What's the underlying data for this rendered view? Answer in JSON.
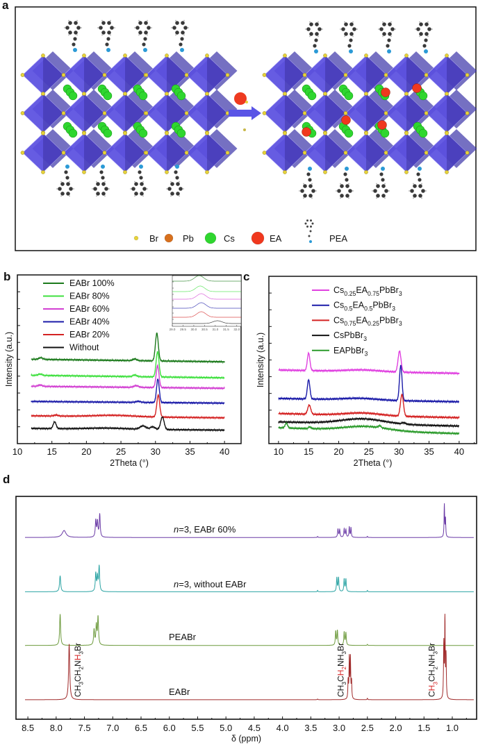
{
  "panel_a": {
    "label": "a",
    "legend": [
      {
        "symbol": "Br",
        "label": "Br",
        "color": "#e6d23a"
      },
      {
        "symbol": "Pb",
        "label": "Pb",
        "color": "#d7701e"
      },
      {
        "symbol": "Cs",
        "label": "Cs",
        "color": "#2fd62f"
      },
      {
        "symbol": "EA",
        "label": "EA",
        "color": "#f0381e"
      },
      {
        "symbol": "PEA",
        "label": "PEA",
        "color": "#444444"
      }
    ],
    "colors": {
      "octahedron": "#5a4fe0",
      "arrow": "#5a55e6",
      "carbon": "#3a3a3a",
      "nitrogen": "#2b9ad6"
    }
  },
  "chart_data": [
    {
      "panel_label": "b",
      "type": "line",
      "xlabel": "2Theta (°)",
      "ylabel": "Intensity (a.u.)",
      "xlim": [
        10,
        42.4
      ],
      "ylim": [
        0,
        10
      ],
      "xticks": [
        "10",
        "15",
        "20",
        "25",
        "30",
        "35",
        "40"
      ],
      "grid": false,
      "legend_position": "top-left",
      "series": [
        {
          "name": "EABr 100%",
          "color": "#1c7a1c",
          "range": [
            12,
            40
          ],
          "offset": 5.0,
          "slope": -0.15,
          "peaks": [
            [
              13.4,
              0.1,
              0.4
            ],
            [
              27.0,
              0.1,
              0.4
            ],
            [
              30.2,
              1.65,
              0.3
            ]
          ]
        },
        {
          "name": "EABr 80%",
          "color": "#3fe03f",
          "range": [
            12,
            40
          ],
          "offset": 4.05,
          "slope": -0.15,
          "peaks": [
            [
              13.3,
              0.08,
              0.4
            ],
            [
              27.0,
              0.1,
              0.4
            ],
            [
              30.3,
              1.5,
              0.3
            ]
          ]
        },
        {
          "name": "EABr 60%",
          "color": "#d23fd2",
          "range": [
            12,
            40
          ],
          "offset": 3.4,
          "slope": -0.12,
          "peaks": [
            [
              13.3,
              0.08,
              0.4
            ],
            [
              27.2,
              0.1,
              0.5
            ],
            [
              30.3,
              1.3,
              0.3
            ]
          ]
        },
        {
          "name": "EABr 40%",
          "color": "#1a1aa8",
          "range": [
            12,
            40
          ],
          "offset": 2.5,
          "slope": -0.1,
          "peaks": [
            [
              27.5,
              0.06,
              0.5
            ],
            [
              30.35,
              1.4,
              0.28
            ]
          ]
        },
        {
          "name": "EABr 20%",
          "color": "#d42222",
          "range": [
            12,
            40
          ],
          "offset": 1.65,
          "slope": -0.12,
          "peaks": [
            [
              15.6,
              0.06,
              0.4
            ],
            [
              24.0,
              0.08,
              4.0
            ],
            [
              30.4,
              1.3,
              0.3
            ]
          ]
        },
        {
          "name": "Without",
          "color": "#111111",
          "range": [
            12,
            40
          ],
          "offset": 0.9,
          "slope": -0.1,
          "peaks": [
            [
              15.4,
              0.4,
              0.3
            ],
            [
              23.0,
              0.06,
              4.0
            ],
            [
              28.2,
              0.2,
              0.6
            ],
            [
              29.6,
              0.15,
              0.5
            ],
            [
              31.0,
              0.75,
              0.35
            ]
          ]
        }
      ],
      "inset": {
        "xlim": [
          29.0,
          32.2
        ],
        "xticks": [
          "29.0",
          "29.5",
          "30.0",
          "30.5",
          "31.0",
          "31.5",
          "32.0"
        ],
        "peaks": [
          30.25,
          30.3,
          30.35,
          30.35,
          30.35,
          31.1
        ]
      }
    },
    {
      "panel_label": "c",
      "type": "line",
      "xlabel": "2Theta (°)",
      "ylabel": "Intensity (a.u.)",
      "xlim": [
        8.4,
        42.9
      ],
      "ylim": [
        0,
        10
      ],
      "xticks": [
        "10",
        "15",
        "20",
        "25",
        "30",
        "35",
        "40"
      ],
      "grid": false,
      "legend_position": "top-center",
      "series": [
        {
          "name": "Cs0.25EA0.75PbBr3",
          "name_parts": [
            [
              "Cs",
              ""
            ],
            [
              "0.25",
              "sub"
            ],
            [
              "EA",
              ""
            ],
            [
              "0.75",
              "sub"
            ],
            [
              "PbBr",
              ""
            ],
            [
              "3",
              "sub"
            ]
          ],
          "color": "#e040e0",
          "range": [
            10,
            40
          ],
          "offset": 4.4,
          "slope": -0.2,
          "peaks": [
            [
              15.0,
              1.05,
              0.3
            ],
            [
              24.0,
              0.1,
              4.0
            ],
            [
              30.1,
              1.25,
              0.35
            ]
          ]
        },
        {
          "name": "Cs0.5EA0.5PbBr3",
          "name_parts": [
            [
              "Cs",
              ""
            ],
            [
              "0.5",
              "sub"
            ],
            [
              "EA",
              ""
            ],
            [
              "0.5",
              "sub"
            ],
            [
              "PbBr",
              ""
            ],
            [
              "3",
              "sub"
            ]
          ],
          "color": "#1a1aa8",
          "range": [
            10,
            40
          ],
          "offset": 2.7,
          "slope": -0.2,
          "peaks": [
            [
              15.0,
              1.15,
              0.3
            ],
            [
              23.5,
              0.1,
              4.0
            ],
            [
              30.3,
              2.1,
              0.3
            ]
          ]
        },
        {
          "name": "Cs0.75EA0.25PbBr3",
          "name_parts": [
            [
              "Cs",
              ""
            ],
            [
              "0.75",
              "sub"
            ],
            [
              "EA",
              ""
            ],
            [
              "0.25",
              "sub"
            ],
            [
              "PbBr",
              ""
            ],
            [
              "3",
              "sub"
            ]
          ],
          "color": "#d42222",
          "range": [
            10,
            40
          ],
          "offset": 1.8,
          "slope": -0.25,
          "peaks": [
            [
              15.1,
              0.55,
              0.35
            ],
            [
              24.0,
              0.15,
              4.0
            ],
            [
              30.5,
              1.3,
              0.35
            ]
          ]
        },
        {
          "name": "CsPbBr3",
          "name_parts": [
            [
              "CsPbBr",
              ""
            ],
            [
              "3",
              "sub"
            ]
          ],
          "color": "#111111",
          "range": [
            10,
            40
          ],
          "offset": 1.3,
          "slope": -0.25,
          "peaks": [
            [
              24.0,
              0.3,
              5.0
            ],
            [
              30.8,
              0.08,
              0.4
            ]
          ]
        },
        {
          "name": "EAPbBr3",
          "name_parts": [
            [
              "EAPbBr",
              ""
            ],
            [
              "3",
              "sub"
            ]
          ],
          "color": "#2a9a2a",
          "range": [
            10,
            40
          ],
          "offset": 0.95,
          "slope": -0.35,
          "peaks": [
            [
              11.3,
              0.28,
              0.3
            ],
            [
              15.2,
              0.1,
              0.3
            ],
            [
              24.5,
              0.25,
              5.0
            ],
            [
              26.8,
              0.12,
              0.3
            ]
          ]
        }
      ]
    },
    {
      "panel_label": "d",
      "type": "line",
      "xlabel": "δ (ppm)",
      "xlim": [
        8.71,
        0.57
      ],
      "ylim": [
        0,
        320
      ],
      "xticks": [
        "8.5",
        "8.0",
        "7.5",
        "7.0",
        "6.5",
        "6.0",
        "5.5",
        "5.0",
        "4.5",
        "4.0",
        "3.5",
        "3.0",
        "2.5",
        "2.0",
        "1.5",
        "1.0"
      ],
      "grid": false,
      "series": [
        {
          "name": "n=3, EABr 60%",
          "name_parts": [
            [
              "n",
              "italic"
            ],
            [
              "=3, EABr 60%",
              ""
            ]
          ],
          "color": "#6a3aa6",
          "offset": 261,
          "peaks": [
            [
              7.86,
              10,
              0.04
            ],
            [
              7.3,
              24,
              0.01
            ],
            [
              7.27,
              22,
              0.01
            ],
            [
              7.23,
              33,
              0.01
            ],
            [
              3.38,
              1.5,
              0.006
            ],
            [
              3.02,
              12,
              0.008
            ],
            [
              2.99,
              11,
              0.008
            ],
            [
              2.91,
              12,
              0.008
            ],
            [
              2.88,
              11,
              0.008
            ],
            [
              2.82,
              15,
              0.007
            ],
            [
              2.79,
              14,
              0.007
            ],
            [
              2.5,
              1.5,
              0.006
            ],
            [
              1.14,
              47,
              0.006
            ],
            [
              1.12,
              26,
              0.006
            ]
          ]
        },
        {
          "name": "n=3, without EABr",
          "name_parts": [
            [
              "n",
              "italic"
            ],
            [
              "=3, without EABr",
              ""
            ]
          ],
          "color": "#2aa3a3",
          "offset": 183,
          "peaks": [
            [
              7.93,
              23,
              0.012
            ],
            [
              7.3,
              26,
              0.01
            ],
            [
              7.27,
              20,
              0.01
            ],
            [
              7.24,
              36,
              0.01
            ],
            [
              3.38,
              2,
              0.006
            ],
            [
              3.04,
              20,
              0.008
            ],
            [
              3.01,
              20,
              0.008
            ],
            [
              2.91,
              18,
              0.008
            ],
            [
              2.88,
              18,
              0.008
            ],
            [
              2.5,
              2,
              0.006
            ]
          ]
        },
        {
          "name": "PEABr",
          "name_parts": [
            [
              "PEABr",
              ""
            ]
          ],
          "color": "#6c9a3c",
          "offset": 106,
          "peaks": [
            [
              7.93,
              45,
              0.01
            ],
            [
              7.33,
              22,
              0.01
            ],
            [
              7.29,
              28,
              0.01
            ],
            [
              7.26,
              40,
              0.01
            ],
            [
              3.06,
              20,
              0.008
            ],
            [
              3.03,
              21,
              0.008
            ],
            [
              2.91,
              19,
              0.008
            ],
            [
              2.88,
              18,
              0.008
            ],
            [
              2.5,
              1.5,
              0.006
            ]
          ]
        },
        {
          "name": "EABr",
          "name_parts": [
            [
              "EABr",
              ""
            ]
          ],
          "color": "#a02a2a",
          "offset": 28,
          "peaks": [
            [
              7.77,
              80,
              0.012
            ],
            [
              3.38,
              1,
              0.006
            ],
            [
              2.84,
              26,
              0.006
            ],
            [
              2.82,
              58,
              0.006
            ],
            [
              2.8,
              58,
              0.006
            ],
            [
              2.78,
              25,
              0.006
            ],
            [
              2.5,
              2,
              0.006
            ],
            [
              1.15,
              78,
              0.006
            ],
            [
              1.13,
              112,
              0.006
            ],
            [
              1.11,
              60,
              0.006
            ]
          ]
        }
      ],
      "annotations": [
        {
          "ppm": 7.62,
          "highlight_color": "#d42222",
          "parts": [
            [
              "CH",
              ""
            ],
            [
              "3",
              "sub"
            ],
            [
              "CH",
              ""
            ],
            [
              "2",
              "sub"
            ],
            [
              "N",
              ""
            ],
            [
              "H",
              "hl"
            ],
            [
              "3",
              "sub"
            ],
            [
              "Br",
              ""
            ]
          ]
        },
        {
          "ppm": 2.97,
          "highlight_color": "#d42222",
          "parts": [
            [
              "CH",
              ""
            ],
            [
              "3",
              "sub"
            ],
            [
              "C",
              ""
            ],
            [
              "H",
              "hl"
            ],
            [
              "2",
              "sub hl"
            ],
            [
              "NH",
              ""
            ],
            [
              "3",
              "sub"
            ],
            [
              "Br",
              ""
            ]
          ]
        },
        {
          "ppm": 1.36,
          "highlight_color": "#d42222",
          "parts": [
            [
              "C",
              ""
            ],
            [
              "H",
              "hl"
            ],
            [
              "3",
              "sub hl"
            ],
            [
              "CH",
              ""
            ],
            [
              "2",
              "sub"
            ],
            [
              "NH",
              ""
            ],
            [
              "3",
              "sub"
            ],
            [
              "Br",
              ""
            ]
          ]
        }
      ]
    }
  ]
}
